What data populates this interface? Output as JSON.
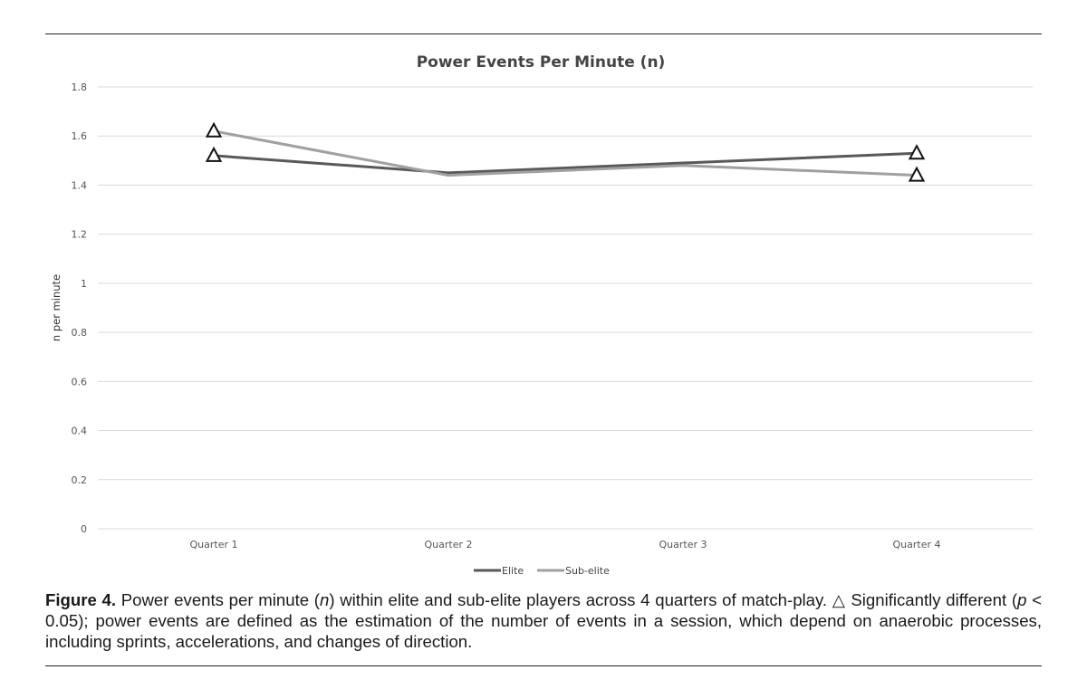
{
  "chart_data": {
    "type": "line",
    "title": "Power Events Per Minute (n)",
    "xlabel": "",
    "ylabel": "n per minute",
    "categories": [
      "Quarter 1",
      "Quarter 2",
      "Quarter 3",
      "Quarter 4"
    ],
    "ylim": [
      0,
      1.8
    ],
    "yticks": [
      "0",
      "0.2",
      "0.4",
      "0.6",
      "0.8",
      "1",
      "1.2",
      "1.4",
      "1.6",
      "1.8"
    ],
    "ytick_values": [
      0,
      0.2,
      0.4,
      0.6,
      0.8,
      1,
      1.2,
      1.4,
      1.6,
      1.8
    ],
    "grid": true,
    "legend": "bottom",
    "series": [
      {
        "name": "Elite",
        "values": [
          1.52,
          1.45,
          1.49,
          1.53
        ],
        "color": "#595959"
      },
      {
        "name": "Sub-elite",
        "values": [
          1.62,
          1.44,
          1.48,
          1.44
        ],
        "color": "#a0a0a0"
      }
    ],
    "significance_markers": [
      {
        "category": "Quarter 1",
        "values": [
          1.62,
          1.52
        ]
      },
      {
        "category": "Quarter 4",
        "values": [
          1.53,
          1.44
        ]
      }
    ]
  },
  "caption": {
    "label": "Figure 4.",
    "part1": " Power events per minute (",
    "italic_n": "n",
    "part2": ") within elite and sub-elite players across 4 quarters of match-play. △ Significantly different (",
    "italic_p": "p",
    "part3": " < 0.05); power events are defined as the estimation of the number of events in a session, which depend on anaerobic processes, including sprints, accelerations, and changes of direction."
  }
}
